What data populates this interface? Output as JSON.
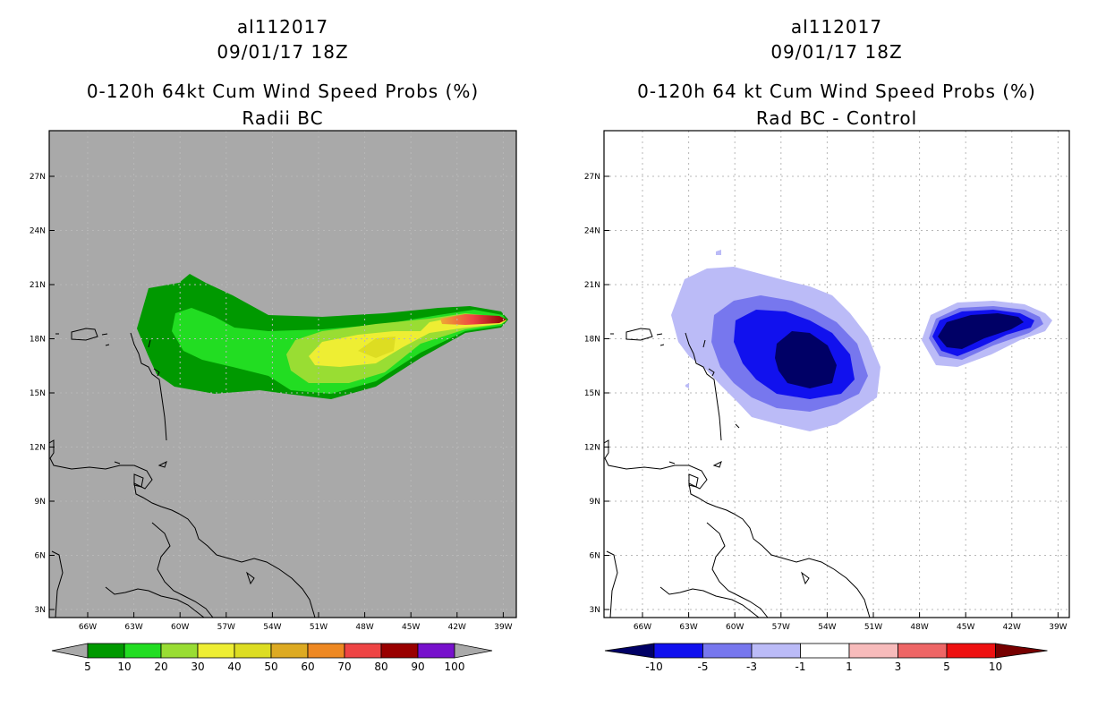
{
  "left_panel": {
    "storm_id": "al112017",
    "datetime": "09/01/17 18Z",
    "product": "0-120h 64kt Cum Wind Speed Probs (%)",
    "subtitle": "Radii BC",
    "lat_ticks": [
      "27N",
      "24N",
      "21N",
      "18N",
      "15N",
      "12N",
      "9N",
      "6N",
      "3N"
    ],
    "lon_ticks": [
      "66W",
      "63W",
      "60W",
      "57W",
      "54W",
      "51W",
      "48W",
      "45W",
      "42W",
      "39W"
    ],
    "colorbar": {
      "labels": [
        "5",
        "10",
        "20",
        "30",
        "40",
        "50",
        "60",
        "70",
        "80",
        "90",
        "100"
      ],
      "colors": [
        "#009900",
        "#22dd22",
        "#99dd33",
        "#eeee33",
        "#dddd22",
        "#ddaa22",
        "#ee8822",
        "#ee4444",
        "#990000",
        "#7711cc"
      ]
    },
    "background": "#a9a9a9"
  },
  "right_panel": {
    "storm_id": "al112017",
    "datetime": "09/01/17 18Z",
    "product": "0-120h 64 kt Cum Wind Speed Probs (%)",
    "subtitle": "Rad BC - Control",
    "lat_ticks": [
      "27N",
      "24N",
      "21N",
      "18N",
      "15N",
      "12N",
      "9N",
      "6N",
      "3N"
    ],
    "lon_ticks": [
      "66W",
      "63W",
      "60W",
      "57W",
      "54W",
      "51W",
      "48W",
      "45W",
      "42W",
      "39W"
    ],
    "colorbar": {
      "labels": [
        "-10",
        "-5",
        "-3",
        "-1",
        "1",
        "3",
        "5",
        "10"
      ],
      "colors": [
        "#000066",
        "#1111ee",
        "#7777ee",
        "#bbbbf7",
        "#ffffff",
        "#f7bbbb",
        "#ee6666",
        "#ee1111",
        "#770000"
      ]
    },
    "background": "#ffffff"
  }
}
